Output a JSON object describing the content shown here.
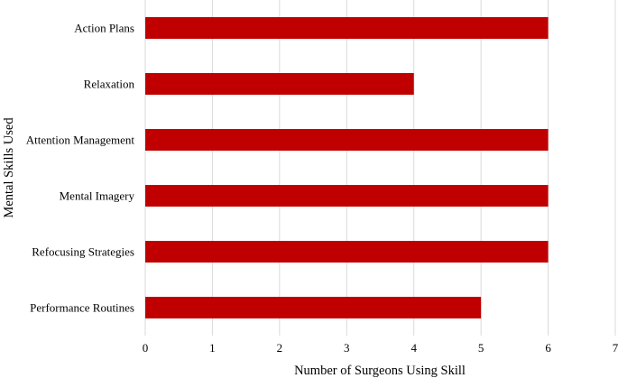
{
  "chart_data": {
    "type": "bar",
    "orientation": "horizontal",
    "categories": [
      "Action Plans",
      "Relaxation",
      "Attention Management",
      "Mental Imagery",
      "Refocusing Strategies",
      "Performance Routines"
    ],
    "values": [
      6,
      4,
      6,
      6,
      6,
      5
    ],
    "title": "",
    "xlabel": "Number of Surgeons Using Skill",
    "ylabel": "Mental Skills Used",
    "xlim": [
      0,
      7
    ],
    "xticks": [
      "0",
      "1",
      "2",
      "3",
      "4",
      "5",
      "6",
      "7"
    ],
    "grid": "vertical",
    "legend": "none",
    "bar_color": "#c00000"
  }
}
